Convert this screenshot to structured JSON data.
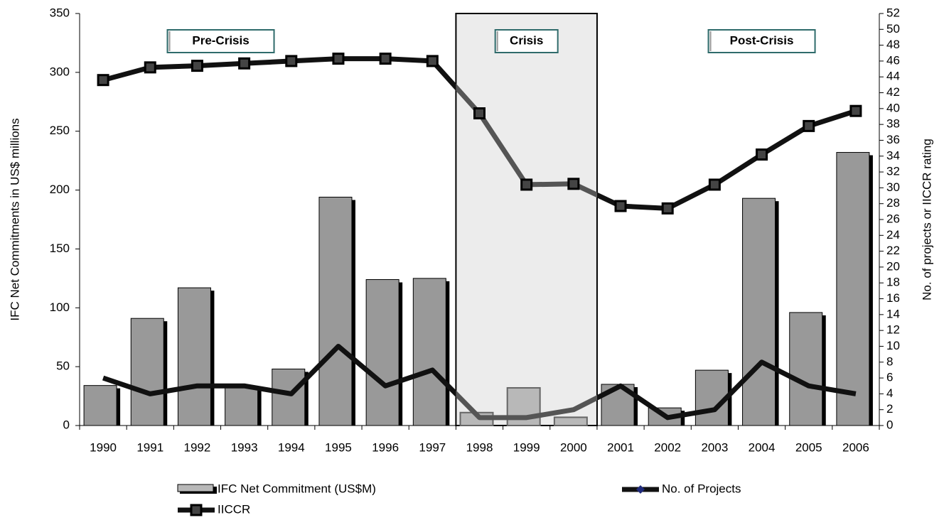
{
  "chart_data": {
    "type": "bar-line",
    "categories": [
      "1990",
      "1991",
      "1992",
      "1993",
      "1994",
      "1995",
      "1996",
      "1997",
      "1998",
      "1999",
      "2000",
      "2001",
      "2002",
      "2003",
      "2004",
      "2005",
      "2006"
    ],
    "series": [
      {
        "name": "IFC Net Commitment (US$M)",
        "type": "bar",
        "color": "#999999",
        "values": [
          34,
          91,
          117,
          33,
          48,
          194,
          124,
          125,
          11,
          32,
          7,
          35,
          15,
          47,
          193,
          96,
          232
        ]
      },
      {
        "name": "No. of Projects",
        "type": "line",
        "axis": "y2",
        "color": "#222222",
        "values": [
          6,
          4,
          5,
          5,
          4,
          10,
          5,
          7,
          1,
          1,
          2,
          5,
          1,
          2,
          8,
          5,
          4
        ]
      },
      {
        "name": "IICCR",
        "type": "line",
        "axis": "y2",
        "color": "#222222",
        "values": [
          43.6,
          45.2,
          45.4,
          45.7,
          46,
          46.3,
          46.3,
          46,
          39.4,
          30.4,
          30.5,
          27.7,
          27.4,
          30.4,
          34.2,
          37.8,
          39.7
        ]
      }
    ],
    "ylabel": "IFC Net Commitments in US$ millions",
    "y2label": "No. of projects or IICCR rating",
    "ylim": [
      0,
      350
    ],
    "yticks": [
      0,
      50,
      100,
      150,
      200,
      250,
      300,
      350
    ],
    "y2lim": [
      0,
      52
    ],
    "y2ticks": [
      0,
      2,
      4,
      6,
      8,
      10,
      12,
      14,
      16,
      18,
      20,
      22,
      24,
      26,
      28,
      30,
      32,
      34,
      36,
      38,
      40,
      42,
      44,
      46,
      48,
      50,
      52
    ],
    "annotations": [
      "Pre-Crisis",
      "Crisis",
      "Post-Crisis"
    ]
  }
}
